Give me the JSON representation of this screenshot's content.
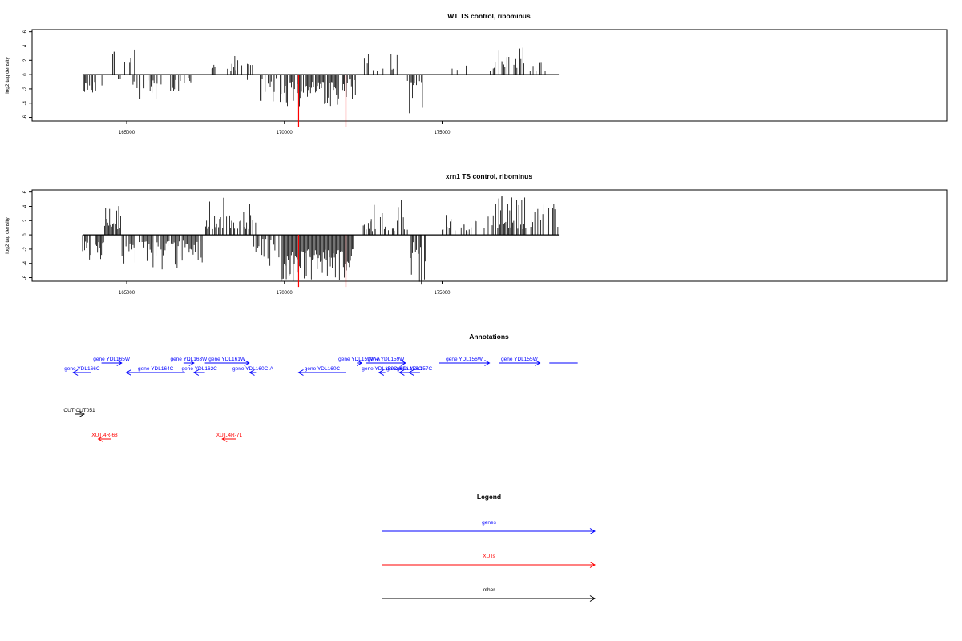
{
  "chart_data": [
    {
      "type": "bar",
      "title": "WT TS control, ribominus",
      "xlabel": "",
      "ylabel": "log2 tag density",
      "xlim": [
        162000,
        191000
      ],
      "ylim": [
        -6.5,
        6.3
      ],
      "xticks": [
        165000,
        170000,
        175000
      ],
      "yticks": [
        -6,
        -4,
        -2,
        0,
        2,
        4,
        6
      ],
      "xtick_labels": [
        "165000",
        "170000",
        "175000"
      ],
      "ytick_labels": [
        "-6",
        "-4",
        "-2",
        "0",
        "2",
        "4",
        "6"
      ],
      "baseline_range": [
        163600,
        178700
      ],
      "segments": [
        {
          "start": 163600,
          "end": 164050,
          "sign": -1,
          "min": 1.0,
          "max": 3.0,
          "density": 0.7
        },
        {
          "start": 164150,
          "end": 164300,
          "sign": -1,
          "min": 0.3,
          "max": 2.0,
          "density": 0.4
        },
        {
          "start": 164700,
          "end": 164820,
          "sign": -1,
          "min": 0.2,
          "max": 1.0,
          "density": 0.3
        },
        {
          "start": 164300,
          "end": 165200,
          "sign": 1,
          "min": 0.8,
          "max": 3.0,
          "density": 0.1
        },
        {
          "start": 165200,
          "end": 166100,
          "sign": -1,
          "min": 0.5,
          "max": 3.5,
          "density": 0.45
        },
        {
          "start": 166200,
          "end": 166650,
          "sign": -1,
          "min": 0.4,
          "max": 2.5,
          "density": 0.3
        },
        {
          "start": 166700,
          "end": 167000,
          "sign": -1,
          "min": 0.3,
          "max": 1.5,
          "density": 0.3
        },
        {
          "start": 167000,
          "end": 167200,
          "sign": -1,
          "min": 0.3,
          "max": 1.5,
          "density": 0.3
        },
        {
          "start": 167700,
          "end": 167900,
          "sign": 1,
          "min": 0.5,
          "max": 1.8,
          "density": 0.8
        },
        {
          "start": 168100,
          "end": 168200,
          "sign": 1,
          "min": 0.5,
          "max": 1.6,
          "density": 0.6
        },
        {
          "start": 168300,
          "end": 168650,
          "sign": 1,
          "min": 0.5,
          "max": 2.8,
          "density": 0.6
        },
        {
          "start": 168700,
          "end": 169000,
          "sign": 1,
          "min": 0.5,
          "max": 2.5,
          "density": 0.6
        },
        {
          "start": 168000,
          "end": 169000,
          "sign": -1,
          "min": 0.3,
          "max": 2.0,
          "density": 0.05
        },
        {
          "start": 169200,
          "end": 169900,
          "sign": -1,
          "min": 0.5,
          "max": 4.0,
          "density": 0.5
        },
        {
          "start": 170000,
          "end": 171900,
          "sign": -1,
          "min": 1.0,
          "max": 4.5,
          "density": 0.9
        },
        {
          "start": 171900,
          "end": 172300,
          "sign": -1,
          "min": 0.5,
          "max": 3.5,
          "density": 0.6
        },
        {
          "start": 172500,
          "end": 172950,
          "sign": 1,
          "min": 0.5,
          "max": 3.0,
          "density": 0.5
        },
        {
          "start": 173000,
          "end": 173800,
          "sign": 1,
          "min": 0.5,
          "max": 3.8,
          "density": 0.25
        },
        {
          "start": 173900,
          "end": 174400,
          "sign": -1,
          "min": 0.8,
          "max": 6.0,
          "density": 0.6
        },
        {
          "start": 175000,
          "end": 176800,
          "sign": 1,
          "min": 0.4,
          "max": 2.0,
          "density": 0.12
        },
        {
          "start": 176800,
          "end": 177600,
          "sign": 1,
          "min": 0.8,
          "max": 4.0,
          "density": 0.5
        },
        {
          "start": 177600,
          "end": 178300,
          "sign": 1,
          "min": 0.5,
          "max": 2.0,
          "density": 0.25
        }
      ],
      "spikes": [
        {
          "x": 164600,
          "y": 3.2
        },
        {
          "x": 165250,
          "y": 3.5
        },
        {
          "x": 170450,
          "y": -7.3,
          "color": "#ff0000"
        },
        {
          "x": 171950,
          "y": -7.3,
          "color": "#ff0000"
        }
      ]
    },
    {
      "type": "bar",
      "title": "xrn1 TS control, ribominus",
      "xlabel": "",
      "ylabel": "log2 tag density",
      "xlim": [
        162000,
        191000
      ],
      "ylim": [
        -6.5,
        6.3
      ],
      "xticks": [
        165000,
        170000,
        175000
      ],
      "yticks": [
        -6,
        -4,
        -2,
        0,
        2,
        4,
        6
      ],
      "xtick_labels": [
        "165000",
        "170000",
        "175000"
      ],
      "ytick_labels": [
        "-6",
        "-4",
        "-2",
        "0",
        "2",
        "4",
        "6"
      ],
      "baseline_range": [
        163600,
        178700
      ],
      "segments": [
        {
          "start": 163600,
          "end": 164300,
          "sign": -1,
          "min": 0.8,
          "max": 3.5,
          "density": 0.6
        },
        {
          "start": 164300,
          "end": 164850,
          "sign": 1,
          "min": 0.8,
          "max": 4.2,
          "density": 0.8
        },
        {
          "start": 164850,
          "end": 167400,
          "sign": -1,
          "min": 0.8,
          "max": 5.0,
          "density": 0.75
        },
        {
          "start": 167500,
          "end": 169100,
          "sign": 1,
          "min": 0.8,
          "max": 5.3,
          "density": 0.6
        },
        {
          "start": 169000,
          "end": 169900,
          "sign": -1,
          "min": 0.5,
          "max": 4.5,
          "density": 0.5
        },
        {
          "start": 169900,
          "end": 172200,
          "sign": -1,
          "min": 2.0,
          "max": 6.5,
          "density": 1.0
        },
        {
          "start": 172500,
          "end": 173900,
          "sign": 1,
          "min": 0.5,
          "max": 5.0,
          "density": 0.45
        },
        {
          "start": 173900,
          "end": 174500,
          "sign": -1,
          "min": 0.8,
          "max": 7.0,
          "density": 0.65
        },
        {
          "start": 175000,
          "end": 176700,
          "sign": 1,
          "min": 0.5,
          "max": 3.0,
          "density": 0.35
        },
        {
          "start": 176700,
          "end": 178700,
          "sign": 1,
          "min": 0.8,
          "max": 5.5,
          "density": 0.75
        }
      ],
      "spikes": [
        {
          "x": 170450,
          "y": -7.3,
          "color": "#ff0000"
        },
        {
          "x": 171950,
          "y": -7.3,
          "color": "#ff0000"
        }
      ]
    }
  ],
  "annotations": {
    "title": "Annotations",
    "items": [
      {
        "label": "gene YDL165W",
        "start": 164200,
        "end": 164840,
        "dir": 1,
        "row": 0,
        "color": "#0000ff"
      },
      {
        "label": "gene YDL166C",
        "start": 163300,
        "end": 163870,
        "dir": -1,
        "row": 1,
        "color": "#0000ff"
      },
      {
        "label": "gene YDL164C",
        "start": 164990,
        "end": 166850,
        "dir": -1,
        "row": 1,
        "color": "#0000ff"
      },
      {
        "label": "gene YDL163W",
        "start": 166800,
        "end": 167130,
        "dir": 1,
        "row": 0,
        "color": "#0000ff"
      },
      {
        "label": "gene YDL162C",
        "start": 167130,
        "end": 167480,
        "dir": -1,
        "row": 1,
        "color": "#0000ff"
      },
      {
        "label": "gene YDL161W",
        "start": 167480,
        "end": 168880,
        "dir": 1,
        "row": 0,
        "color": "#0000ff"
      },
      {
        "label": "gene YDL160C-A",
        "start": 168900,
        "end": 169100,
        "dir": -1,
        "row": 1,
        "color": "#0000ff"
      },
      {
        "label": "gene YDL160C",
        "start": 170450,
        "end": 171950,
        "dir": -1,
        "row": 1,
        "color": "#0000ff"
      },
      {
        "label": "gene YDL159W-A",
        "start": 172300,
        "end": 172450,
        "dir": 1,
        "row": 0,
        "color": "#0000ff"
      },
      {
        "label": "gene YDL159W",
        "start": 172600,
        "end": 173840,
        "dir": 1,
        "row": 0,
        "color": "#0000ff"
      },
      {
        "label": "gene YDL159C-B",
        "start": 173000,
        "end": 173200,
        "dir": -1,
        "row": 1,
        "color": "#0000ff"
      },
      {
        "label": "gene YDL158C",
        "start": 173650,
        "end": 173950,
        "dir": -1,
        "row": 1,
        "color": "#0000ff"
      },
      {
        "label": "gene YDL157C",
        "start": 173950,
        "end": 174300,
        "dir": -1,
        "row": 1,
        "color": "#0000ff"
      },
      {
        "label": "gene YDL156W",
        "start": 174900,
        "end": 176500,
        "dir": 1,
        "row": 0,
        "color": "#0000ff"
      },
      {
        "label": "gene YDL155W",
        "start": 176800,
        "end": 178100,
        "dir": 1,
        "row": 0,
        "color": "#0000ff"
      },
      {
        "label": "",
        "start": 178400,
        "end": 179300,
        "dir": 1,
        "row": 0,
        "color": "#0000ff"
      },
      {
        "label": "CUT CUT051",
        "start": 163350,
        "end": 163650,
        "dir": 1,
        "row": 2,
        "color": "#000000"
      },
      {
        "label": "XUT 4R-68",
        "start": 164100,
        "end": 164500,
        "dir": -1,
        "row": 3,
        "color": "#ff0000"
      },
      {
        "label": "XUT 4R-71",
        "start": 168030,
        "end": 168470,
        "dir": -1,
        "row": 3,
        "color": "#ff0000"
      }
    ]
  },
  "legend": {
    "title": "Legend",
    "items": [
      {
        "label": "genes",
        "color": "#0000ff"
      },
      {
        "label": "XUTs",
        "color": "#ff0000"
      },
      {
        "label": "other",
        "color": "#000000"
      }
    ]
  }
}
